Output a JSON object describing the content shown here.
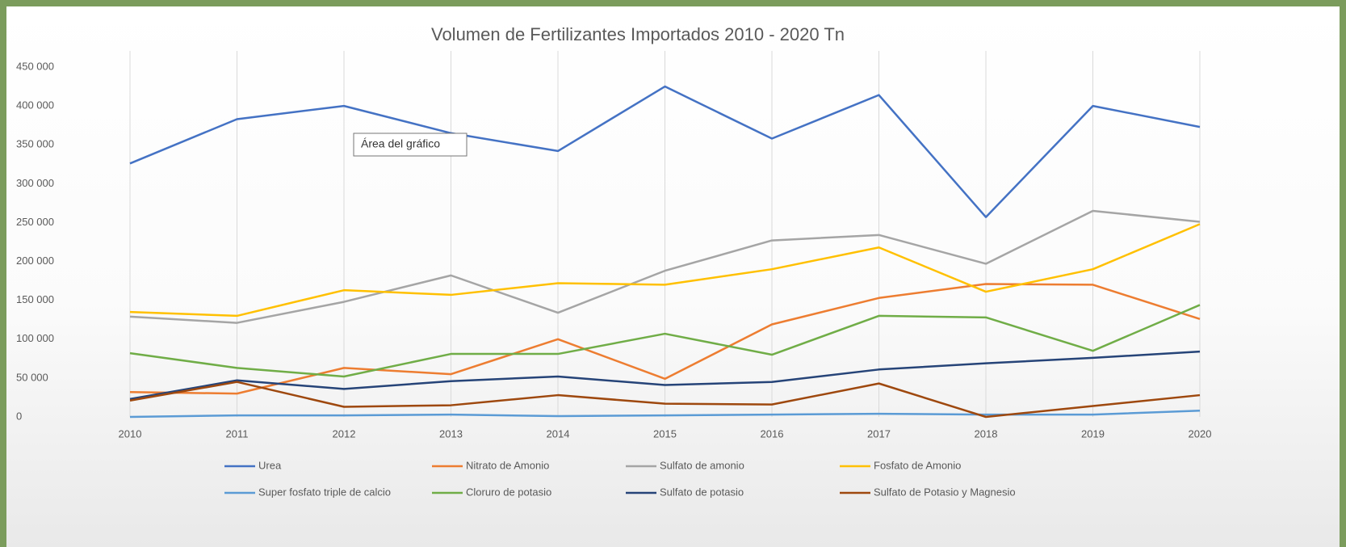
{
  "chart_data": {
    "type": "line",
    "title": "Volumen de Fertilizantes Importados 2010 - 2020 Tn",
    "annotation": "Área del gráfico",
    "categories": [
      "2010",
      "2011",
      "2012",
      "2013",
      "2014",
      "2015",
      "2016",
      "2017",
      "2018",
      "2019",
      "2020"
    ],
    "series": [
      {
        "name": "Urea",
        "color": "#4472c4",
        "values": [
          326000,
          383000,
          400000,
          365000,
          342000,
          425000,
          358000,
          414000,
          257000,
          400000,
          373000
        ]
      },
      {
        "name": "Nitrato de Amonio",
        "color": "#ed7d31",
        "values": [
          32000,
          30000,
          63000,
          55000,
          100000,
          49000,
          119000,
          153000,
          171000,
          170000,
          126000
        ]
      },
      {
        "name": "Sulfato de amonio",
        "color": "#a5a5a5",
        "values": [
          129000,
          121000,
          148000,
          182000,
          134000,
          188000,
          227000,
          234000,
          197000,
          265000,
          251000
        ]
      },
      {
        "name": "Fosfato de Amonio",
        "color": "#ffc000",
        "values": [
          135000,
          130000,
          163000,
          157000,
          172000,
          170000,
          190000,
          218000,
          161000,
          190000,
          248000
        ]
      },
      {
        "name": "Super fosfato triple de calcio",
        "color": "#5b9bd5",
        "values": [
          0,
          2000,
          2000,
          3000,
          1000,
          2000,
          3000,
          4000,
          3000,
          3000,
          8000
        ]
      },
      {
        "name": "Cloruro de potasio",
        "color": "#70ad47",
        "values": [
          82000,
          63000,
          52000,
          81000,
          81000,
          107000,
          80000,
          130000,
          128000,
          85000,
          144000
        ]
      },
      {
        "name": "Sulfato de potasio",
        "color": "#264478",
        "values": [
          23000,
          47000,
          36000,
          46000,
          52000,
          41000,
          45000,
          61000,
          69000,
          76000,
          84000
        ]
      },
      {
        "name": "Sulfato de Potasio y Magnesio",
        "color": "#9e480e",
        "values": [
          21000,
          45000,
          13000,
          15000,
          28000,
          17000,
          16000,
          43000,
          0,
          14000,
          28000
        ]
      }
    ],
    "ylim": [
      0,
      450000
    ],
    "yticks": [
      {
        "value": 0,
        "label": "0"
      },
      {
        "value": 50000,
        "label": "50 000"
      },
      {
        "value": 100000,
        "label": "100 000"
      },
      {
        "value": 150000,
        "label": "150 000"
      },
      {
        "value": 200000,
        "label": "200 000"
      },
      {
        "value": 250000,
        "label": "250 000"
      },
      {
        "value": 300000,
        "label": "300 000"
      },
      {
        "value": 350000,
        "label": "350 000"
      },
      {
        "value": 400000,
        "label": "400 000"
      },
      {
        "value": 450000,
        "label": "450 000"
      }
    ],
    "grid": true,
    "legend": "bottom"
  }
}
